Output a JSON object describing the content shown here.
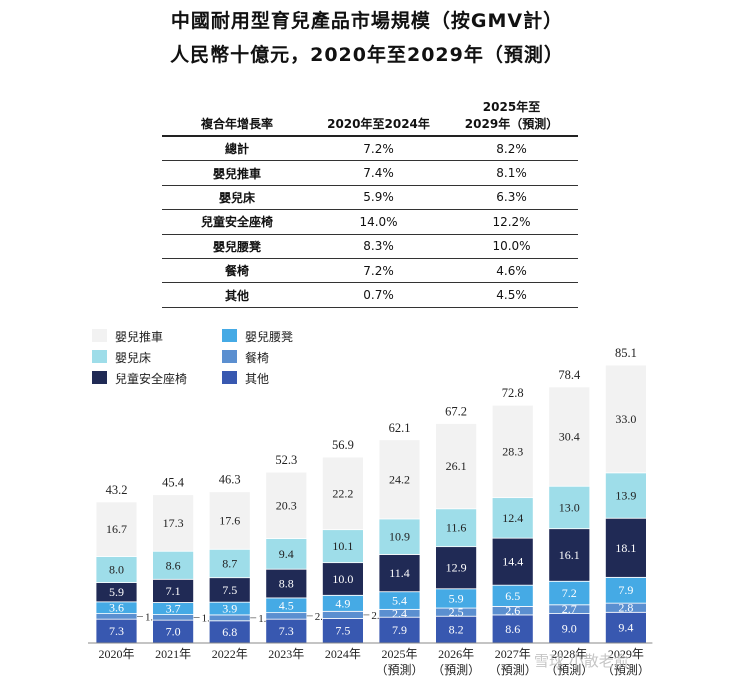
{
  "title": {
    "line1": "中國耐用型育兒產品市場規模（按GMV計）",
    "line2": "人民幣十億元，2020年至2029年（預測）"
  },
  "cagr_table": {
    "header_label": "複合年增長率",
    "col1": "2020年至2024年",
    "col2_line1": "2025年至",
    "col2_line2": "2029年（預測）",
    "rows": [
      {
        "label": "總計",
        "v1": "7.2%",
        "v2": "8.2%"
      },
      {
        "label": "嬰兒推車",
        "v1": "7.4%",
        "v2": "8.1%"
      },
      {
        "label": "嬰兒床",
        "v1": "5.9%",
        "v2": "6.3%"
      },
      {
        "label": "兒童安全座椅",
        "v1": "14.0%",
        "v2": "12.2%"
      },
      {
        "label": "嬰兒腰凳",
        "v1": "8.3%",
        "v2": "10.0%"
      },
      {
        "label": "餐椅",
        "v1": "7.2%",
        "v2": "4.6%"
      },
      {
        "label": "其他",
        "v1": "0.7%",
        "v2": "4.5%"
      }
    ]
  },
  "chart_data": {
    "type": "bar",
    "stacked": true,
    "categories": [
      "2020年",
      "2021年",
      "2022年",
      "2023年",
      "2024年",
      "2025年",
      "2026年",
      "2027年",
      "2028年",
      "2029年"
    ],
    "category_sublabels": [
      "",
      "",
      "",
      "",
      "",
      "（預測）",
      "（預測）",
      "（預測）",
      "（預測）",
      "（預測）"
    ],
    "totals": [
      "43.2",
      "45.4",
      "46.3",
      "52.3",
      "56.9",
      "62.1",
      "67.2",
      "72.8",
      "78.4",
      "85.1"
    ],
    "series": [
      {
        "name": "其他",
        "color": "#3858b0",
        "text_color": "#ffffff",
        "values": [
          7.3,
          7.0,
          6.8,
          7.3,
          7.5,
          7.9,
          8.2,
          8.6,
          9.0,
          9.4
        ],
        "labels": [
          "7.3",
          "7.0",
          "6.8",
          "7.3",
          "7.5",
          "7.9",
          "8.2",
          "8.6",
          "9.0",
          "9.4"
        ]
      },
      {
        "name": "餐椅",
        "color": "#5b8fd0",
        "text_color": "#ffffff",
        "values": [
          1.7,
          1.7,
          1.8,
          2.0,
          2.2,
          2.4,
          2.5,
          2.6,
          2.7,
          2.8
        ],
        "labels": [
          "1.7",
          "1.7",
          "1.8",
          "2.0",
          "2.2",
          "2.4",
          "2.5",
          "2.6",
          "2.7",
          "2.8"
        ]
      },
      {
        "name": "嬰兒腰凳",
        "color": "#45aae5",
        "text_color": "#ffffff",
        "values": [
          3.6,
          3.7,
          3.9,
          4.5,
          4.9,
          5.4,
          5.9,
          6.5,
          7.2,
          7.9
        ],
        "labels": [
          "3.6",
          "3.7",
          "3.9",
          "4.5",
          "4.9",
          "5.4",
          "5.9",
          "6.5",
          "7.2",
          "7.9"
        ]
      },
      {
        "name": "兒童安全座椅",
        "color": "#202a55",
        "text_color": "#ffffff",
        "values": [
          5.9,
          7.1,
          7.5,
          8.8,
          10.0,
          11.4,
          12.9,
          14.4,
          16.1,
          18.1
        ],
        "labels": [
          "5.9",
          "7.1",
          "7.5",
          "8.8",
          "10.0",
          "11.4",
          "12.9",
          "14.4",
          "16.1",
          "18.1"
        ]
      },
      {
        "name": "嬰兒床",
        "color": "#9edde9",
        "text_color": "#222222",
        "values": [
          8.0,
          8.6,
          8.7,
          9.4,
          10.1,
          10.9,
          11.6,
          12.4,
          13.0,
          13.9
        ],
        "labels": [
          "8.0",
          "8.6",
          "8.7",
          "9.4",
          "10.1",
          "10.9",
          "11.6",
          "12.4",
          "13.0",
          "13.9"
        ]
      },
      {
        "name": "嬰兒推車",
        "color": "#f2f2f2",
        "text_color": "#222222",
        "values": [
          16.7,
          17.3,
          17.6,
          20.3,
          22.2,
          24.2,
          26.1,
          28.3,
          30.4,
          33.0
        ],
        "labels": [
          "16.7",
          "17.3",
          "17.6",
          "20.3",
          "22.2",
          "24.2",
          "26.1",
          "28.3",
          "30.4",
          "33.0"
        ]
      }
    ],
    "legend": [
      {
        "name": "嬰兒推車",
        "color": "#f2f2f2"
      },
      {
        "name": "嬰兒床",
        "color": "#9edde9"
      },
      {
        "name": "兒童安全座椅",
        "color": "#202a55"
      },
      {
        "name": "嬰兒腰凳",
        "color": "#45aae5"
      },
      {
        "name": "餐椅",
        "color": "#5b8fd0"
      },
      {
        "name": "其他",
        "color": "#3858b0"
      }
    ],
    "legend_position": "top-left",
    "ylim": [
      0,
      85.1
    ],
    "unit": "人民幣十億元"
  },
  "watermark": "雪球 小散老俞"
}
